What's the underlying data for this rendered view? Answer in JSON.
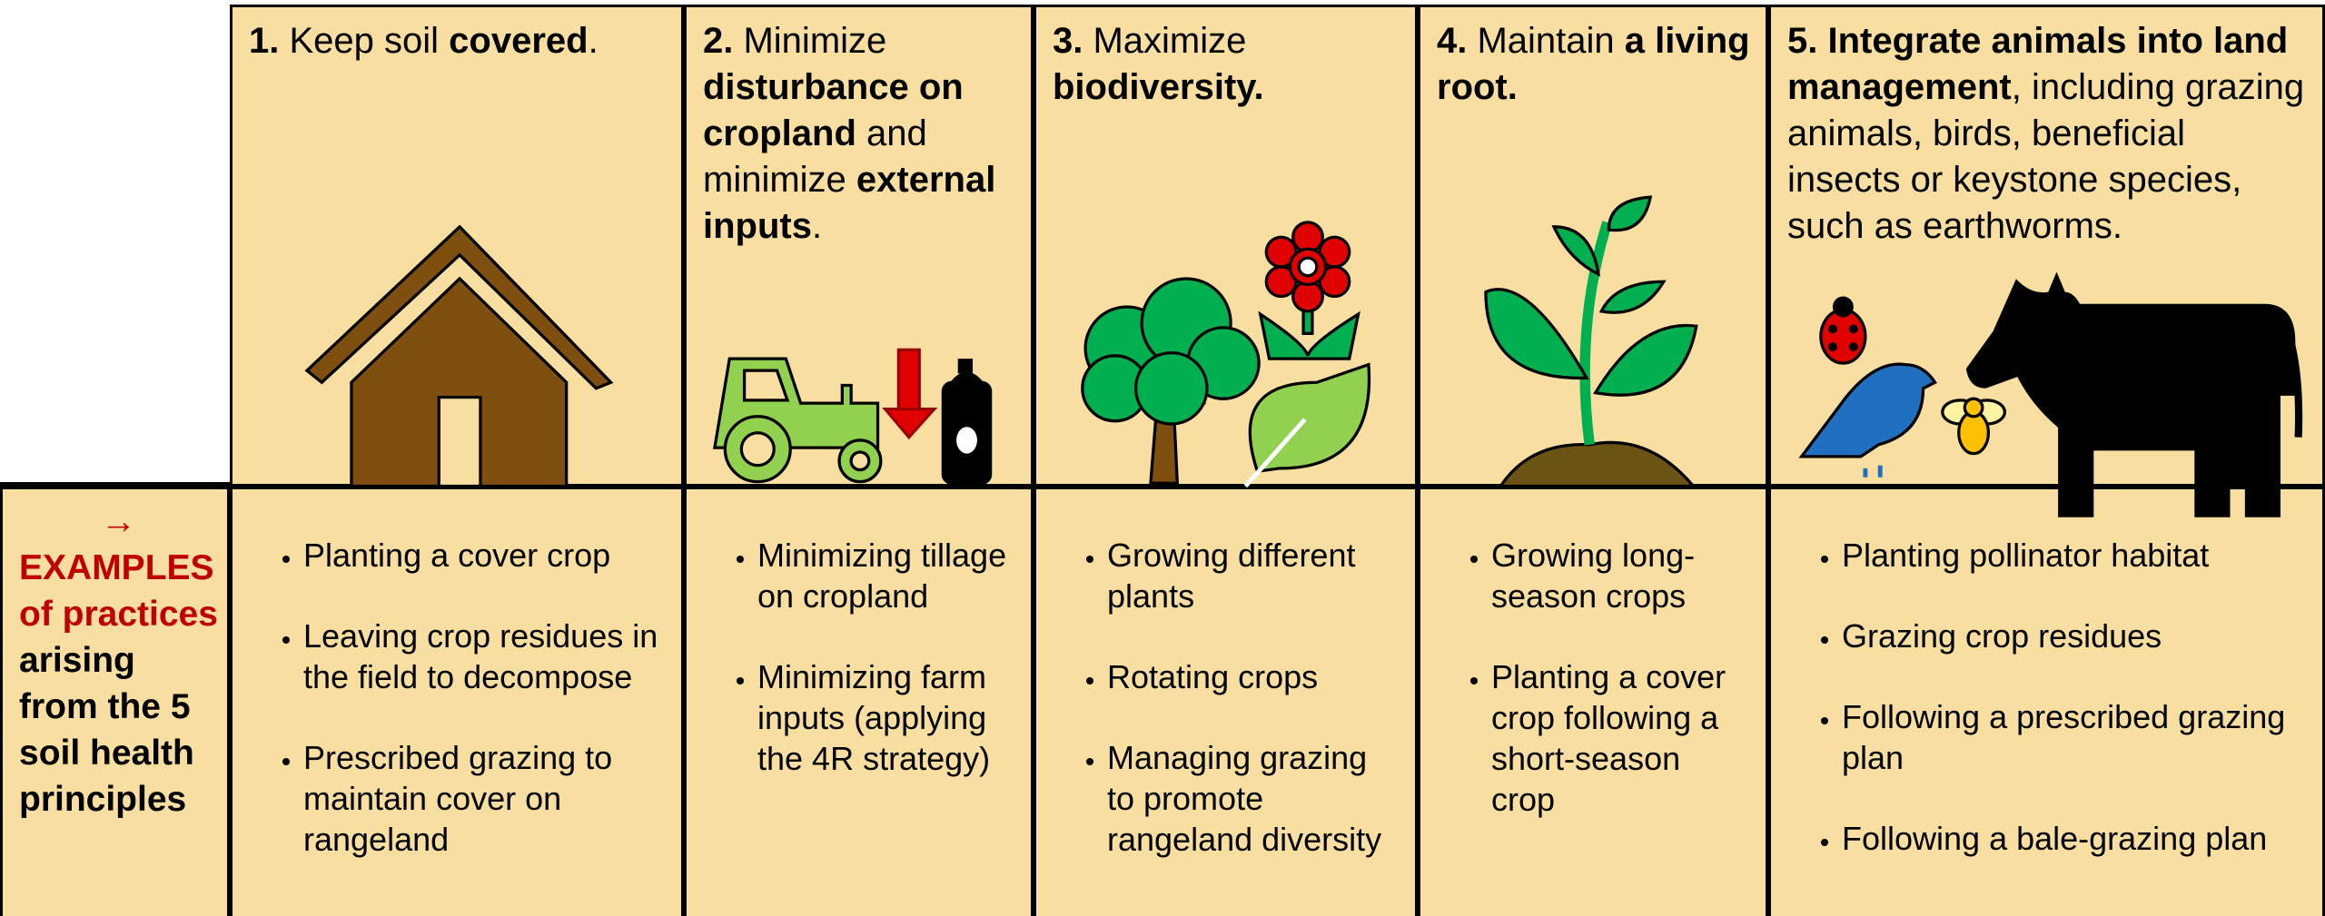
{
  "label": {
    "arrow": "→",
    "highlight": "EXAMPLES of practices",
    "rest": "arising from the 5 soil health principles"
  },
  "principles": [
    {
      "heading": [
        {
          "text": "1.",
          "bold": true
        },
        {
          "text": " Keep soil ",
          "bold": false
        },
        {
          "text": "covered",
          "bold": true
        },
        {
          "text": ".",
          "bold": false
        }
      ],
      "examples": [
        "Planting a cover crop",
        "Leaving crop residues in the field to decompose",
        "Prescribed grazing to maintain cover on rangeland"
      ]
    },
    {
      "heading": [
        {
          "text": "2.",
          "bold": true
        },
        {
          "text": " Minimize ",
          "bold": false
        },
        {
          "text": "disturbance on cropland",
          "bold": true
        },
        {
          "text": " and minimize ",
          "bold": false
        },
        {
          "text": "external inputs",
          "bold": true
        },
        {
          "text": ".",
          "bold": false
        }
      ],
      "examples": [
        "Minimizing tillage on cropland",
        "Minimizing farm inputs (applying the 4R strategy)"
      ]
    },
    {
      "heading": [
        {
          "text": "3.",
          "bold": true
        },
        {
          "text": " Maximize ",
          "bold": false
        },
        {
          "text": "biodiversity.",
          "bold": true
        }
      ],
      "examples": [
        "Growing different plants",
        "Rotating crops",
        "Managing grazing to promote rangeland diversity"
      ]
    },
    {
      "heading": [
        {
          "text": "4.",
          "bold": true
        },
        {
          "text": " Maintain ",
          "bold": false
        },
        {
          "text": "a living root.",
          "bold": true
        }
      ],
      "examples": [
        "Growing long-season crops",
        "Planting a cover crop following a short-season crop"
      ]
    },
    {
      "heading": [
        {
          "text": "5. Integrate animals into land management",
          "bold": true
        },
        {
          "text": ", including grazing animals, birds, beneficial insects or keystone species, such as earthworms.",
          "bold": false
        }
      ],
      "examples": [
        "Planting pollinator habitat",
        "Grazing crop residues",
        "Following a prescribed grazing plan",
        "Following a bale-grazing plan"
      ]
    }
  ]
}
